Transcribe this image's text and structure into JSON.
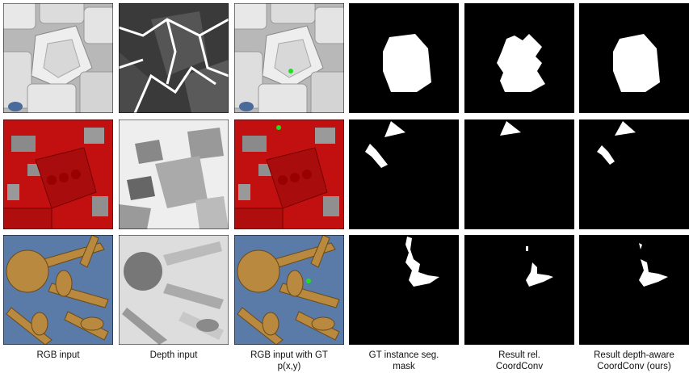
{
  "columns": [
    {
      "caption_lines": [
        "RGB input"
      ]
    },
    {
      "caption_lines": [
        "Depth input"
      ]
    },
    {
      "caption_lines": [
        "RGB input with GT",
        "p(x,y)"
      ]
    },
    {
      "caption_lines": [
        "GT instance seg.",
        "mask"
      ]
    },
    {
      "caption_lines": [
        "Result rel.",
        "CoordConv"
      ]
    },
    {
      "caption_lines": [
        "Result depth-aware",
        "CoordConv (ours)"
      ]
    }
  ]
}
